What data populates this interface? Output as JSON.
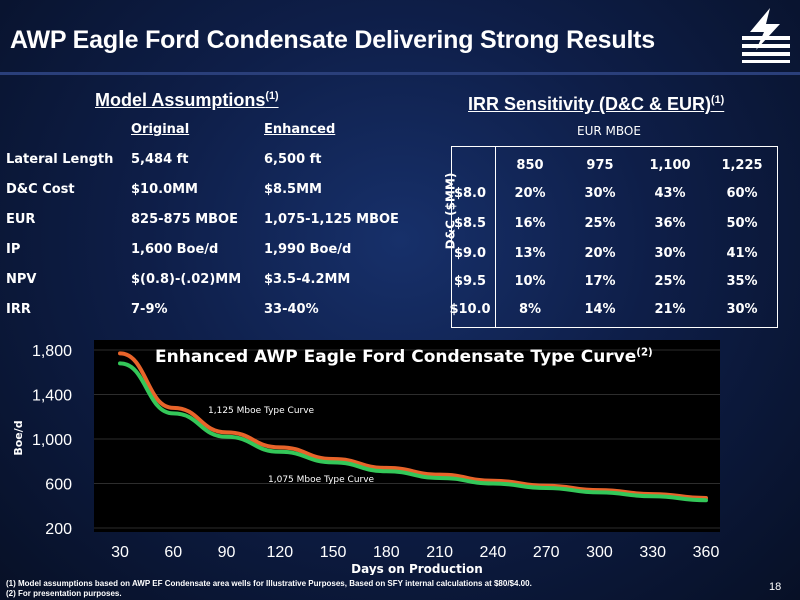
{
  "title": "AWP Eagle Ford Condensate Delivering Strong Results",
  "model_heading": "Model Assumptions",
  "model_heading_sup": "(1)",
  "irr_heading": "IRR Sensitivity (D&C & EUR)",
  "irr_heading_sup": "(1)",
  "assumptions": {
    "col_original": "Original",
    "col_enhanced": "Enhanced",
    "rows": [
      {
        "label": "Lateral Length",
        "original": "5,484 ft",
        "enhanced": "6,500 ft"
      },
      {
        "label": "D&C Cost",
        "original": "$10.0MM",
        "enhanced": "$8.5MM"
      },
      {
        "label": "EUR",
        "original": "825-875 MBOE",
        "enhanced": "1,075-1,125 MBOE"
      },
      {
        "label": "IP",
        "original": "1,600 Boe/d",
        "enhanced": "1,990 Boe/d"
      },
      {
        "label": "NPV",
        "original": "$(0.8)-(.02)MM",
        "enhanced": "$3.5-4.2MM"
      },
      {
        "label": "IRR",
        "original": "7-9%",
        "enhanced": "33-40%"
      }
    ]
  },
  "irr_table": {
    "eur_header": "EUR MBOE",
    "dc_label": "D&C ($MM)",
    "eur_cols": [
      "850",
      "975",
      "1,100",
      "1,225"
    ],
    "rows": [
      {
        "dc": "$8.0",
        "values": [
          "20%",
          "30%",
          "43%",
          "60%"
        ]
      },
      {
        "dc": "$8.5",
        "values": [
          "16%",
          "25%",
          "36%",
          "50%"
        ]
      },
      {
        "dc": "$9.0",
        "values": [
          "13%",
          "20%",
          "30%",
          "41%"
        ]
      },
      {
        "dc": "$9.5",
        "values": [
          "10%",
          "17%",
          "25%",
          "35%"
        ]
      },
      {
        "dc": "$10.0",
        "values": [
          "8%",
          "14%",
          "21%",
          "30%"
        ]
      }
    ]
  },
  "chart_data": {
    "type": "line",
    "title": "Enhanced AWP Eagle Ford Condensate Type Curve",
    "title_sup": "(2)",
    "xlabel": "Days on Production",
    "ylabel": "Boe/d",
    "xlim": [
      30,
      360
    ],
    "ylim": [
      200,
      1800
    ],
    "x_ticks": [
      30,
      60,
      90,
      120,
      150,
      180,
      210,
      240,
      270,
      300,
      330,
      360
    ],
    "y_ticks": [
      200,
      600,
      1000,
      1400,
      1800
    ],
    "y_tick_labels": [
      "200",
      "600",
      "1,000",
      "1,400",
      "1,800"
    ],
    "grid": true,
    "series": [
      {
        "name": "1,125 Mboe Type Curve",
        "color": "#e8642a",
        "x": [
          30,
          60,
          90,
          120,
          150,
          180,
          210,
          240,
          270,
          300,
          330,
          360
        ],
        "values": [
          1770,
          1280,
          1060,
          925,
          820,
          740,
          680,
          625,
          580,
          540,
          505,
          470
        ]
      },
      {
        "name": "1,075 Mboe Type Curve",
        "color": "#34c759",
        "x": [
          30,
          60,
          90,
          120,
          150,
          180,
          210,
          240,
          270,
          300,
          330,
          360
        ],
        "values": [
          1680,
          1230,
          1020,
          885,
          790,
          710,
          650,
          600,
          560,
          520,
          485,
          450
        ]
      }
    ]
  },
  "footnotes": [
    "(1)    Model assumptions based on AWP EF Condensate area wells for Illustrative Purposes, Based on SFY internal calculations at $80/$4.00.",
    "(2)    For presentation purposes."
  ],
  "page_number": "18",
  "colors": {
    "background": "#0e1e48",
    "orange": "#e8642a",
    "green": "#34c759"
  }
}
